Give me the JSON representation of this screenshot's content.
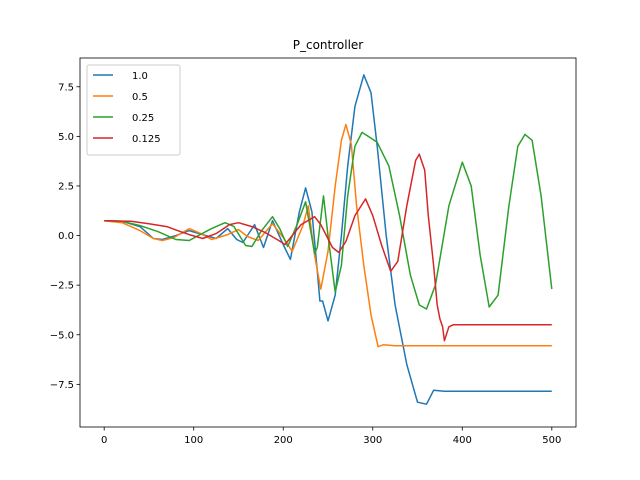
{
  "chart_data": {
    "type": "line",
    "title": "P_controller",
    "xlabel": "",
    "ylabel": "",
    "xlim": [
      -27,
      527
    ],
    "ylim": [
      -9.65,
      8.95
    ],
    "xticks": [
      0,
      100,
      200,
      300,
      400,
      500
    ],
    "xtick_labels": [
      "0",
      "100",
      "200",
      "300",
      "400",
      "500"
    ],
    "yticks": [
      7.5,
      5.0,
      2.5,
      0.0,
      -2.5,
      -5.0,
      -7.5
    ],
    "ytick_labels": [
      "7.5",
      "5.0",
      "2.5",
      "0.0",
      "−2.5",
      "−5.0",
      "−7.5"
    ],
    "grid": false,
    "legend_position": "upper-left",
    "series": [
      {
        "name": "1.0",
        "color": "#1f77b4",
        "points": [
          [
            0,
            0.75
          ],
          [
            20,
            0.72
          ],
          [
            40,
            0.45
          ],
          [
            55,
            -0.15
          ],
          [
            65,
            -0.2
          ],
          [
            80,
            0.0
          ],
          [
            95,
            0.25
          ],
          [
            110,
            0.05
          ],
          [
            125,
            -0.15
          ],
          [
            138,
            0.35
          ],
          [
            148,
            -0.2
          ],
          [
            155,
            -0.35
          ],
          [
            168,
            0.55
          ],
          [
            178,
            -0.6
          ],
          [
            188,
            0.75
          ],
          [
            200,
            -0.45
          ],
          [
            208,
            -1.2
          ],
          [
            218,
            1.2
          ],
          [
            225,
            2.4
          ],
          [
            232,
            1.2
          ],
          [
            238,
            -1.8
          ],
          [
            241,
            -3.3
          ],
          [
            244,
            -3.3
          ],
          [
            250,
            -4.3
          ],
          [
            258,
            -3.0
          ],
          [
            265,
            0.0
          ],
          [
            272,
            3.5
          ],
          [
            280,
            6.5
          ],
          [
            290,
            8.1
          ],
          [
            298,
            7.2
          ],
          [
            305,
            4.5
          ],
          [
            315,
            0.0
          ],
          [
            325,
            -3.5
          ],
          [
            338,
            -6.5
          ],
          [
            350,
            -8.4
          ],
          [
            360,
            -8.5
          ],
          [
            368,
            -7.8
          ],
          [
            380,
            -7.85
          ],
          [
            420,
            -7.85
          ],
          [
            500,
            -7.85
          ]
        ]
      },
      {
        "name": "0.5",
        "color": "#ff7f0e",
        "points": [
          [
            0,
            0.75
          ],
          [
            20,
            0.65
          ],
          [
            40,
            0.25
          ],
          [
            55,
            -0.15
          ],
          [
            65,
            -0.25
          ],
          [
            78,
            -0.1
          ],
          [
            95,
            0.35
          ],
          [
            108,
            0.1
          ],
          [
            120,
            -0.2
          ],
          [
            138,
            0.05
          ],
          [
            150,
            0.3
          ],
          [
            160,
            -0.05
          ],
          [
            172,
            -0.25
          ],
          [
            188,
            0.6
          ],
          [
            200,
            -0.1
          ],
          [
            210,
            -0.8
          ],
          [
            222,
            0.5
          ],
          [
            228,
            1.5
          ],
          [
            235,
            -1.0
          ],
          [
            242,
            -2.7
          ],
          [
            250,
            -0.8
          ],
          [
            258,
            2.5
          ],
          [
            265,
            4.8
          ],
          [
            270,
            5.6
          ],
          [
            276,
            4.6
          ],
          [
            282,
            1.5
          ],
          [
            290,
            -1.5
          ],
          [
            298,
            -4.0
          ],
          [
            306,
            -5.6
          ],
          [
            312,
            -5.5
          ],
          [
            325,
            -5.55
          ],
          [
            400,
            -5.55
          ],
          [
            500,
            -5.55
          ]
        ]
      },
      {
        "name": "0.25",
        "color": "#2ca02c",
        "points": [
          [
            0,
            0.75
          ],
          [
            20,
            0.72
          ],
          [
            40,
            0.5
          ],
          [
            60,
            0.2
          ],
          [
            80,
            -0.2
          ],
          [
            95,
            -0.25
          ],
          [
            105,
            0.0
          ],
          [
            120,
            0.35
          ],
          [
            135,
            0.65
          ],
          [
            145,
            0.45
          ],
          [
            158,
            -0.5
          ],
          [
            165,
            -0.55
          ],
          [
            175,
            0.2
          ],
          [
            188,
            0.95
          ],
          [
            196,
            0.35
          ],
          [
            205,
            -0.55
          ],
          [
            215,
            0.5
          ],
          [
            225,
            1.7
          ],
          [
            235,
            -0.9
          ],
          [
            238,
            -0.6
          ],
          [
            245,
            2.0
          ],
          [
            250,
            0.0
          ],
          [
            258,
            -2.85
          ],
          [
            265,
            -1.5
          ],
          [
            272,
            2.0
          ],
          [
            280,
            4.5
          ],
          [
            288,
            5.2
          ],
          [
            295,
            5.0
          ],
          [
            305,
            4.7
          ],
          [
            318,
            3.5
          ],
          [
            330,
            1.0
          ],
          [
            342,
            -2.0
          ],
          [
            352,
            -3.5
          ],
          [
            360,
            -3.7
          ],
          [
            370,
            -2.5
          ],
          [
            385,
            1.5
          ],
          [
            400,
            3.7
          ],
          [
            410,
            2.5
          ],
          [
            420,
            -1.0
          ],
          [
            430,
            -3.6
          ],
          [
            440,
            -3.0
          ],
          [
            452,
            1.5
          ],
          [
            462,
            4.5
          ],
          [
            470,
            5.1
          ],
          [
            478,
            4.8
          ],
          [
            488,
            2.0
          ],
          [
            500,
            -2.7
          ]
        ]
      },
      {
        "name": "0.125",
        "color": "#d62728",
        "points": [
          [
            0,
            0.75
          ],
          [
            30,
            0.72
          ],
          [
            50,
            0.6
          ],
          [
            70,
            0.45
          ],
          [
            85,
            0.2
          ],
          [
            95,
            0.05
          ],
          [
            110,
            -0.15
          ],
          [
            125,
            0.1
          ],
          [
            140,
            0.55
          ],
          [
            150,
            0.65
          ],
          [
            165,
            0.45
          ],
          [
            180,
            0.15
          ],
          [
            195,
            -0.25
          ],
          [
            202,
            -0.45
          ],
          [
            210,
            0.0
          ],
          [
            220,
            0.55
          ],
          [
            235,
            0.95
          ],
          [
            242,
            0.55
          ],
          [
            255,
            -0.6
          ],
          [
            262,
            -0.85
          ],
          [
            270,
            -0.3
          ],
          [
            280,
            1.0
          ],
          [
            292,
            1.85
          ],
          [
            300,
            1.0
          ],
          [
            310,
            -0.5
          ],
          [
            320,
            -1.8
          ],
          [
            328,
            -1.3
          ],
          [
            338,
            1.5
          ],
          [
            348,
            3.8
          ],
          [
            352,
            4.1
          ],
          [
            358,
            3.3
          ],
          [
            362,
            1.0
          ],
          [
            368,
            -1.5
          ],
          [
            372,
            -3.5
          ],
          [
            375,
            -4.2
          ],
          [
            378,
            -4.6
          ],
          [
            380,
            -5.3
          ],
          [
            385,
            -4.6
          ],
          [
            390,
            -4.5
          ],
          [
            393,
            -4.5
          ],
          [
            400,
            -4.5
          ],
          [
            450,
            -4.5
          ],
          [
            500,
            -4.5
          ]
        ]
      }
    ]
  }
}
